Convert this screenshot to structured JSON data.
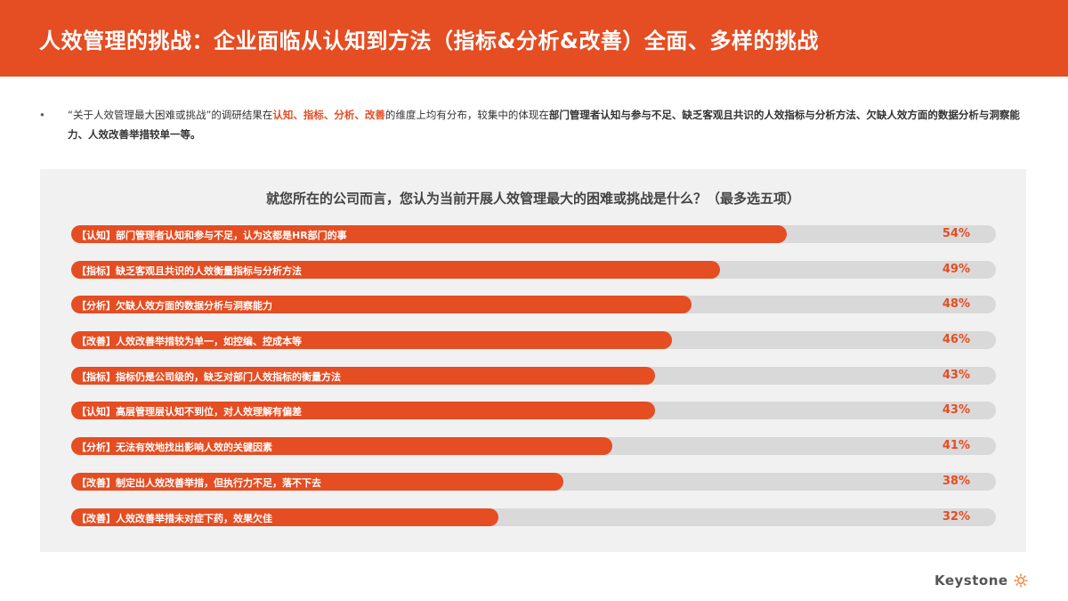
{
  "header": {
    "title": "人效管理的挑战：企业面临从认知到方法（指标&分析&改善）全面、多样的挑战",
    "background_color": "#e54d22"
  },
  "summary": {
    "bullet": "•",
    "part1": "“关于人效管理最大困难或挑战”的调研结果在",
    "highlight": "认知、指标、分析、改善",
    "part2": "的维度上均有分布，较集中的体现在",
    "bold": "部门管理者认知与参与不足、缺乏客观且共识的人效指标与分析方法、欠缺人效方面的数据分析与洞察能力、人效改善举措较单一等。"
  },
  "colors": {
    "accent": "#e54d22",
    "track": "#d9d9d9",
    "panel": "#f1f1f1"
  },
  "chart_data": {
    "type": "bar",
    "orientation": "horizontal",
    "title": "就您所在的公司而言，您认为当前开展人效管理最大的困难或挑战是什么？（最多选五项）",
    "xlabel": "",
    "ylabel": "",
    "xlim": [
      0,
      100
    ],
    "grid": false,
    "legend": null,
    "categories": [
      "【认知】部门管理者认知和参与不足，认为这都是HR部门的事",
      "【指标】缺乏客观且共识的人效衡量指标与分析方法",
      "【分析】欠缺人效方面的数据分析与洞察能力",
      "【改善】人效改善举措较为单一，如控编、控成本等",
      "【指标】指标仍是公司级的，缺乏对部门人效指标的衡量方法",
      "【认知】高层管理层认知不到位，对人效理解有偏差",
      "【分析】无法有效地找出影响人效的关键因素",
      "【改善】制定出人效改善举措，但执行力不足，落不下去",
      "【改善】人效改善举措未对症下药，效果欠佳"
    ],
    "values": [
      54,
      49,
      48,
      46,
      43,
      43,
      41,
      38,
      32
    ],
    "value_labels": [
      "54%",
      "49%",
      "48%",
      "46%",
      "43%",
      "43%",
      "41%",
      "38%",
      "32%"
    ],
    "fill_ratio": [
      0.774,
      0.702,
      0.671,
      0.65,
      0.631,
      0.631,
      0.585,
      0.532,
      0.462
    ]
  },
  "footer": {
    "logo_text": "Keystone",
    "logo_icon": "sun-gear-icon"
  }
}
